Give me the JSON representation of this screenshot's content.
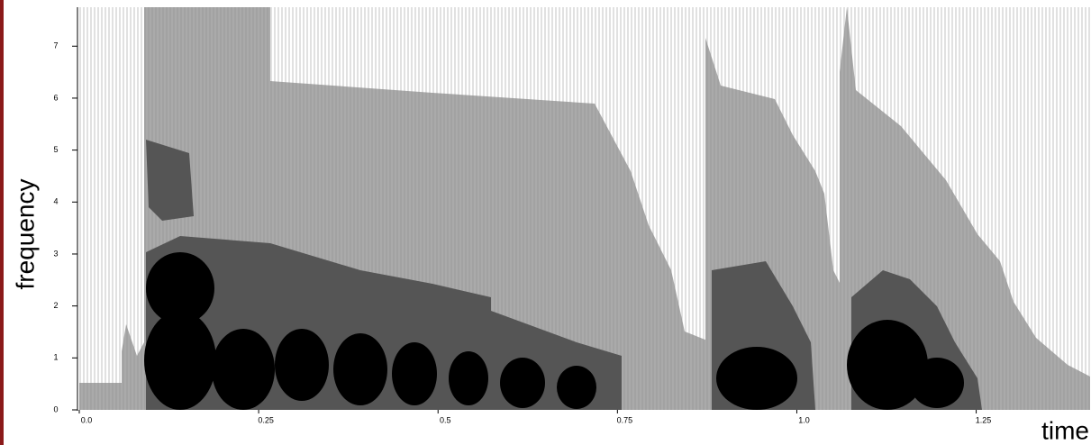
{
  "chart_data": {
    "type": "spectrogram",
    "xlabel": "time",
    "ylabel": "frequency",
    "xlim": [
      0,
      1.41
    ],
    "ylim": [
      0,
      7.75
    ],
    "xticks": [
      {
        "value": 0,
        "label": "0.0"
      },
      0.25,
      0.5,
      0.75,
      {
        "value": 1,
        "label": "1.0"
      },
      1.25
    ],
    "yticks": [
      0,
      1,
      2,
      3,
      4,
      5,
      6,
      7
    ]
  }
}
